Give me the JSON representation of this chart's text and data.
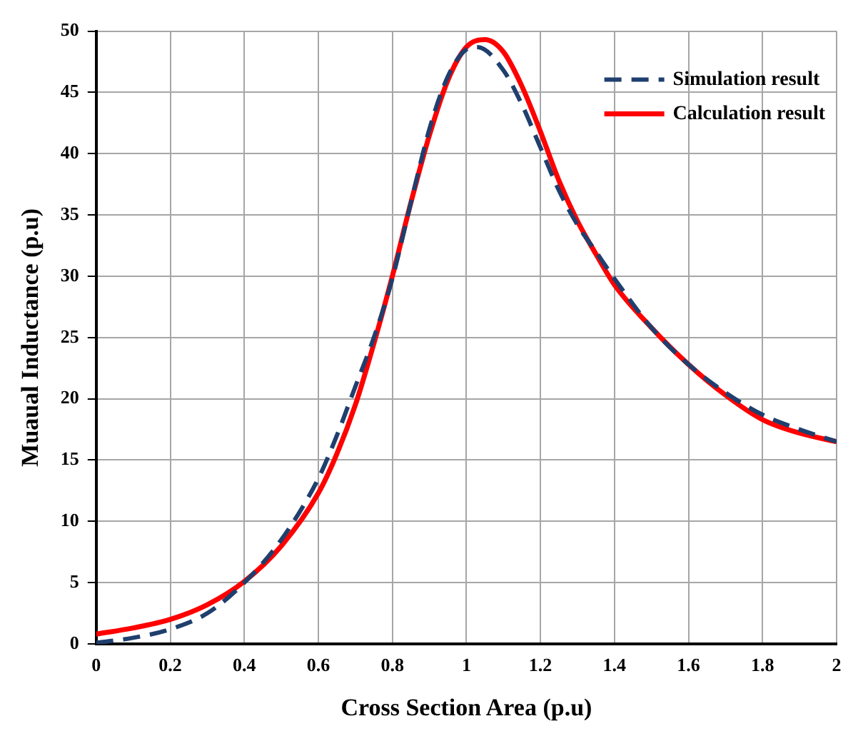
{
  "chart_data": {
    "type": "line",
    "xlabel": "Cross Section Area (p.u)",
    "ylabel": "Muaual Inductance (p.u)",
    "xlim": [
      0,
      2
    ],
    "xticks": [
      0,
      0.2,
      0.4,
      0.6,
      0.8,
      1,
      1.2,
      1.4,
      1.6,
      1.8,
      2
    ],
    "ylim": [
      0,
      50
    ],
    "yticks": [
      0,
      5,
      10,
      15,
      20,
      25,
      30,
      35,
      40,
      45,
      50
    ],
    "grid": true,
    "legend": "top right",
    "marker": "none",
    "series": [
      {
        "name": "Simulation result",
        "color": "#1f3f6e",
        "line_style": "dashed",
        "x": [
          0,
          0.1,
          0.2,
          0.3,
          0.4,
          0.5,
          0.6,
          0.65,
          0.7,
          0.75,
          0.8,
          0.85,
          0.9,
          0.95,
          1.0,
          1.03,
          1.1,
          1.15,
          1.2,
          1.25,
          1.3,
          1.35,
          1.4,
          1.5,
          1.6,
          1.7,
          1.8,
          1.9,
          2.0
        ],
        "values": [
          0.1,
          0.5,
          1.2,
          2.5,
          5.0,
          8.5,
          13.5,
          17,
          21,
          25,
          29.8,
          36,
          42,
          46.3,
          48.5,
          48.7,
          46.8,
          44,
          40.5,
          37,
          34.2,
          32,
          29.8,
          25.8,
          22.8,
          20.5,
          18.7,
          17.5,
          16.5
        ]
      },
      {
        "name": "Calculation result",
        "color": "#ff0000",
        "line_style": "solid",
        "x": [
          0,
          0.1,
          0.2,
          0.3,
          0.4,
          0.5,
          0.6,
          0.65,
          0.7,
          0.75,
          0.8,
          0.85,
          0.9,
          0.95,
          1.0,
          1.05,
          1.1,
          1.15,
          1.2,
          1.25,
          1.3,
          1.35,
          1.4,
          1.5,
          1.6,
          1.7,
          1.8,
          1.9,
          2.0
        ],
        "values": [
          0.8,
          1.3,
          2.0,
          3.2,
          5.1,
          8.0,
          12.3,
          15.5,
          19.5,
          24.5,
          30,
          36,
          41.5,
          46,
          48.7,
          49.3,
          48.3,
          45.5,
          41.8,
          37.8,
          34.5,
          31.8,
          29.3,
          25.8,
          22.8,
          20.3,
          18.3,
          17.2,
          16.5
        ]
      }
    ]
  }
}
